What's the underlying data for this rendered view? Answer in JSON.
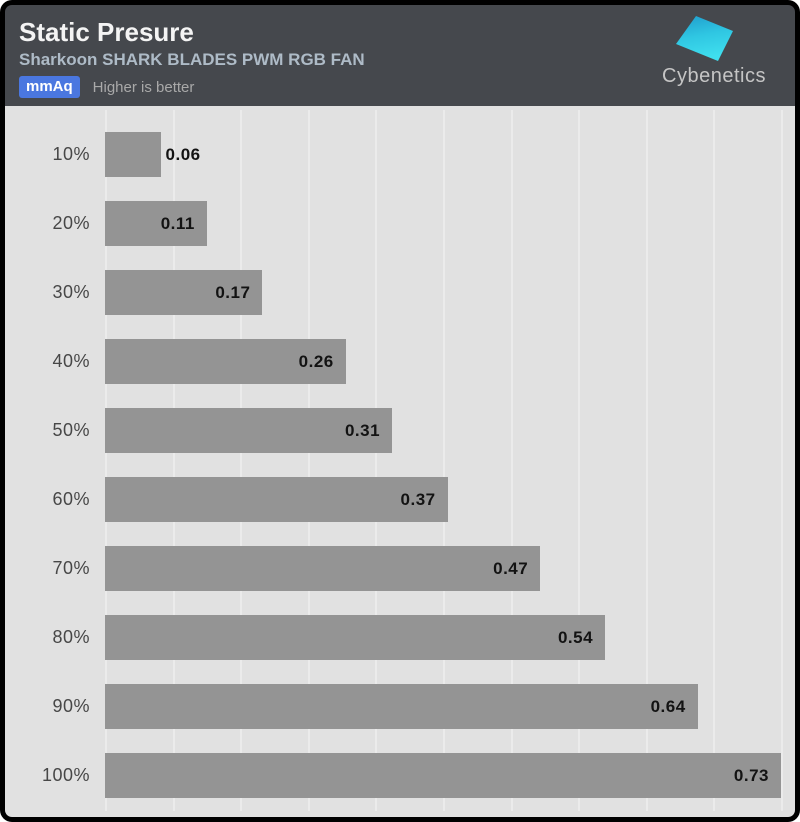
{
  "header": {
    "title": "Static Presure",
    "subtitle": "Sharkoon SHARK BLADES PWM RGB FAN",
    "unit_badge": "mmAq",
    "note": "Higher is better"
  },
  "logo": {
    "brand": "Cybenetics",
    "mark_color_top": "#1f9ccc",
    "mark_color_bottom": "#3fdeee"
  },
  "chart_data": {
    "type": "bar",
    "orientation": "horizontal",
    "title": "Static Presure",
    "xlabel": "mmAq",
    "ylabel": "",
    "categories": [
      "10%",
      "20%",
      "30%",
      "40%",
      "50%",
      "60%",
      "70%",
      "80%",
      "90%",
      "100%"
    ],
    "values": [
      0.06,
      0.11,
      0.17,
      0.26,
      0.31,
      0.37,
      0.47,
      0.54,
      0.64,
      0.73
    ],
    "xlim": [
      0,
      0.73
    ],
    "gridline_divisions": 10,
    "grid": true,
    "legend": false,
    "higher_is_better": true,
    "bar_color": "#949494",
    "plot_bg": "#e1e1e1",
    "gridline_color": "#ebebeb",
    "header_bg": "#45484d",
    "badge_color": "#4a77e0"
  }
}
